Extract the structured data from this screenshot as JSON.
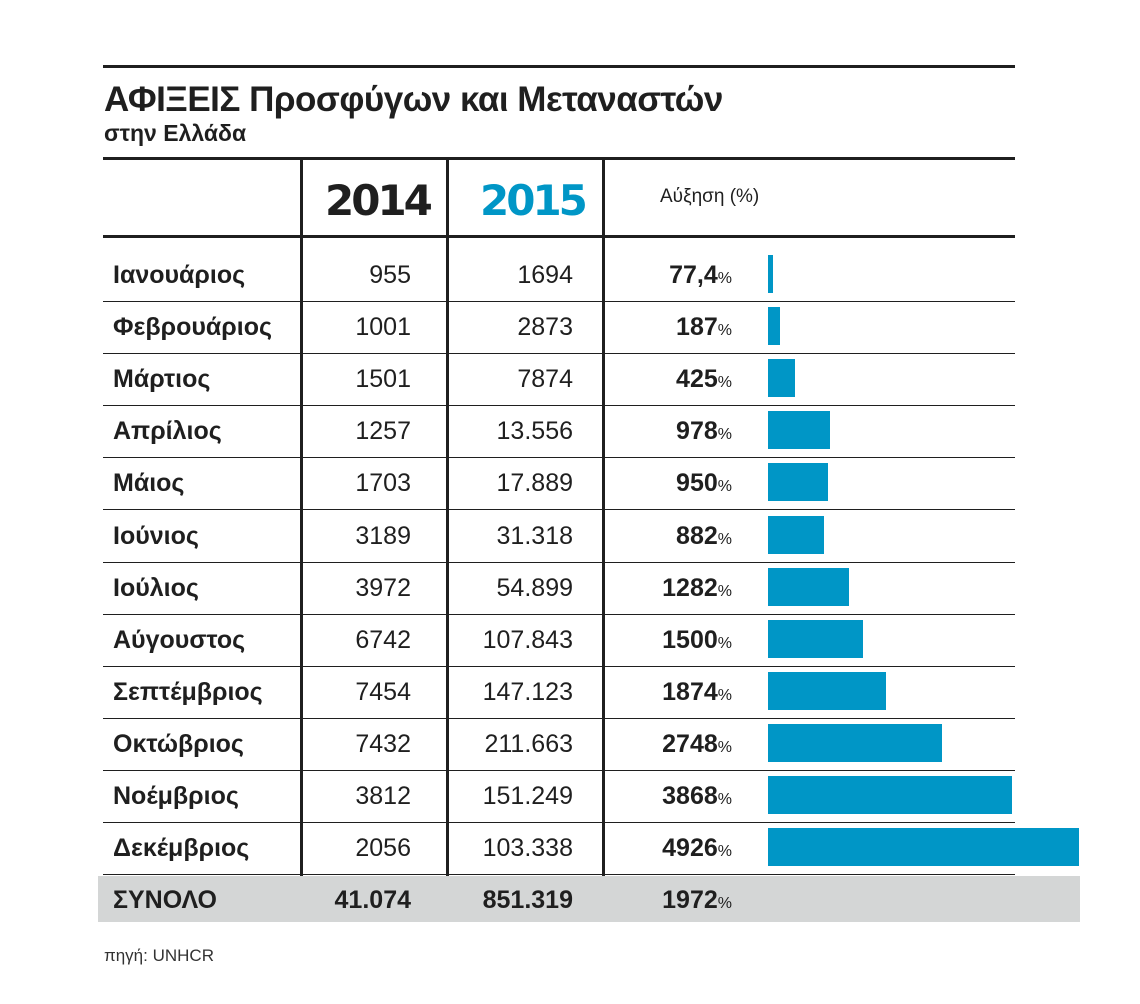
{
  "header": {
    "title": "ΑΦΙΞΕΙΣ Προσφύγων και Μεταναστών",
    "subtitle": "στην Ελλάδα",
    "col_year_1": "2014",
    "col_year_2": "2015",
    "col_growth": "Αύξηση  (%)"
  },
  "colors": {
    "year_1": "#1f1f1f",
    "year_2": "#0096c6",
    "bar": "#0096c6",
    "total_row_bg": "#d4d6d6"
  },
  "source": "πηγή: UNHCR",
  "chart_data": {
    "type": "table",
    "columns": [
      "",
      "2014",
      "2015",
      "Αύξηση  (%)"
    ],
    "rows": [
      {
        "month": "Ιανουάριος",
        "y2014": "955",
        "y2015": "1694",
        "growth": "77,4",
        "growth_value": 77.4
      },
      {
        "month": "Φεβρουάριος",
        "y2014": "1001",
        "y2015": "2873",
        "growth": "187",
        "growth_value": 187
      },
      {
        "month": "Μάρτιος",
        "y2014": "1501",
        "y2015": "7874",
        "growth": "425",
        "growth_value": 425
      },
      {
        "month": "Απρίλιος",
        "y2014": "1257",
        "y2015": "13.556",
        "growth": "978",
        "growth_value": 978
      },
      {
        "month": "Μάιος",
        "y2014": "1703",
        "y2015": "17.889",
        "growth": "950",
        "growth_value": 950
      },
      {
        "month": "Ιούνιος",
        "y2014": "3189",
        "y2015": "31.318",
        "growth": "882",
        "growth_value": 882
      },
      {
        "month": "Ιούλιος",
        "y2014": "3972",
        "y2015": "54.899",
        "growth": "1282",
        "growth_value": 1282
      },
      {
        "month": "Αύγουστος",
        "y2014": "6742",
        "y2015": "107.843",
        "growth": "1500",
        "growth_value": 1500
      },
      {
        "month": "Σεπτέμβριος",
        "y2014": "7454",
        "y2015": "147.123",
        "growth": "1874",
        "growth_value": 1874
      },
      {
        "month": "Οκτώβριος",
        "y2014": "7432",
        "y2015": "211.663",
        "growth": "2748",
        "growth_value": 2748
      },
      {
        "month": "Νοέμβριος",
        "y2014": "3812",
        "y2015": "151.249",
        "growth": "3868",
        "growth_value": 3868
      },
      {
        "month": "Δεκέμβριος",
        "y2014": "2056",
        "y2015": "103.338",
        "growth": "4926",
        "growth_value": 4926
      }
    ],
    "total": {
      "month": "ΣΥΝΟΛΟ",
      "y2014": "41.074",
      "y2015": "851.319",
      "growth": "1972"
    },
    "percent_sign": "%"
  }
}
